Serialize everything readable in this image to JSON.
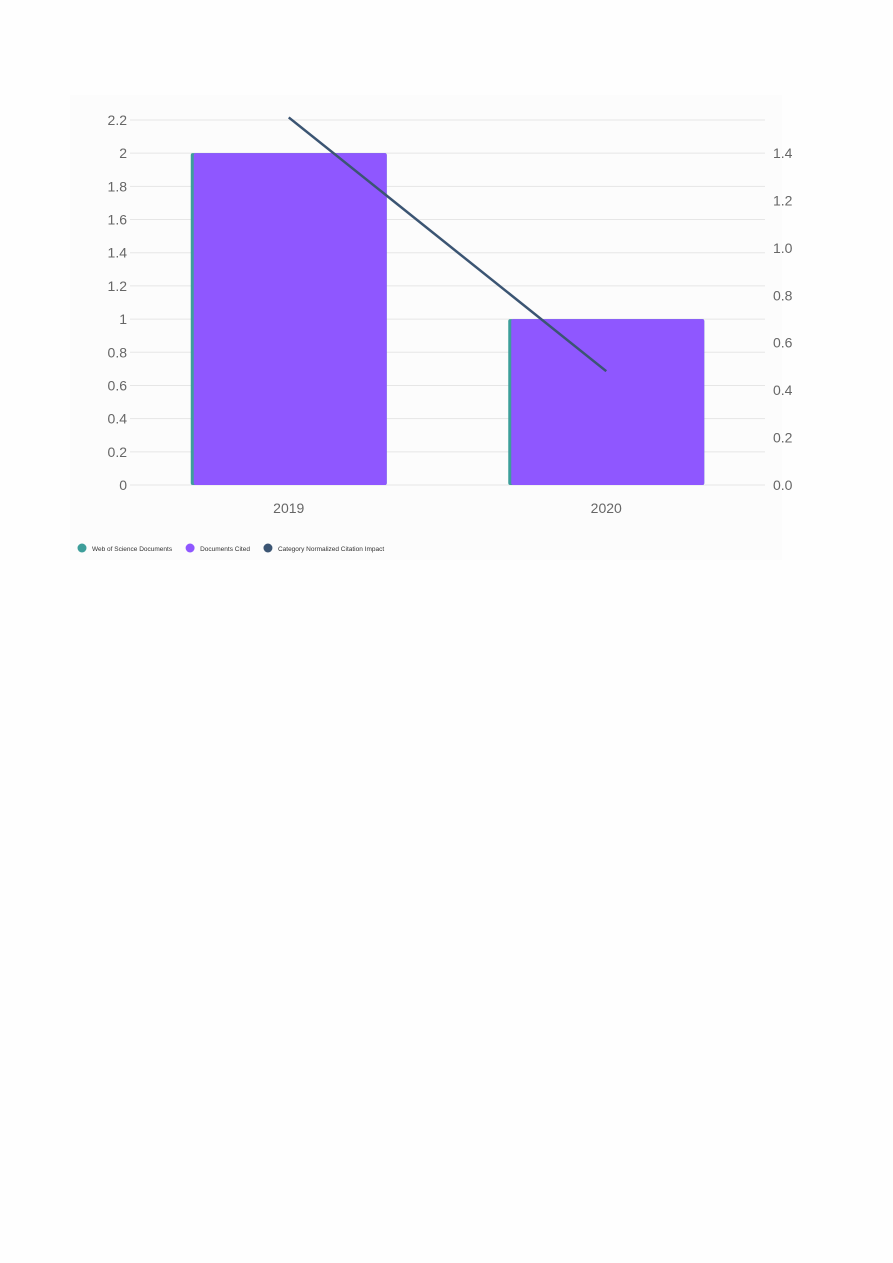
{
  "chart_data": {
    "type": "bar",
    "categories": [
      "2019",
      "2020"
    ],
    "series": [
      {
        "name": "Web of Science Documents",
        "type": "bar",
        "axis": "left",
        "color": "#3d9e9a",
        "values": [
          2,
          1
        ]
      },
      {
        "name": "Documents Cited",
        "type": "bar",
        "axis": "left",
        "color": "#8f57ff",
        "values": [
          2,
          1
        ]
      },
      {
        "name": "Category Normalized Citation Impact",
        "type": "line",
        "axis": "right",
        "color": "#3b5573",
        "values": [
          1.55,
          0.48
        ]
      }
    ],
    "y_left": {
      "range": [
        0,
        2.2
      ],
      "ticks": [
        "0",
        "0.2",
        "0.4",
        "0.6",
        "0.8",
        "1",
        "1.2",
        "1.4",
        "1.6",
        "1.8",
        "2",
        "2.2"
      ]
    },
    "y_right": {
      "range": [
        0,
        1.54
      ],
      "ticks": [
        "0.0",
        "0.2",
        "0.4",
        "0.6",
        "0.8",
        "1.0",
        "1.2",
        "1.4"
      ]
    },
    "grid": true,
    "legend_placement": "bottom-left"
  }
}
